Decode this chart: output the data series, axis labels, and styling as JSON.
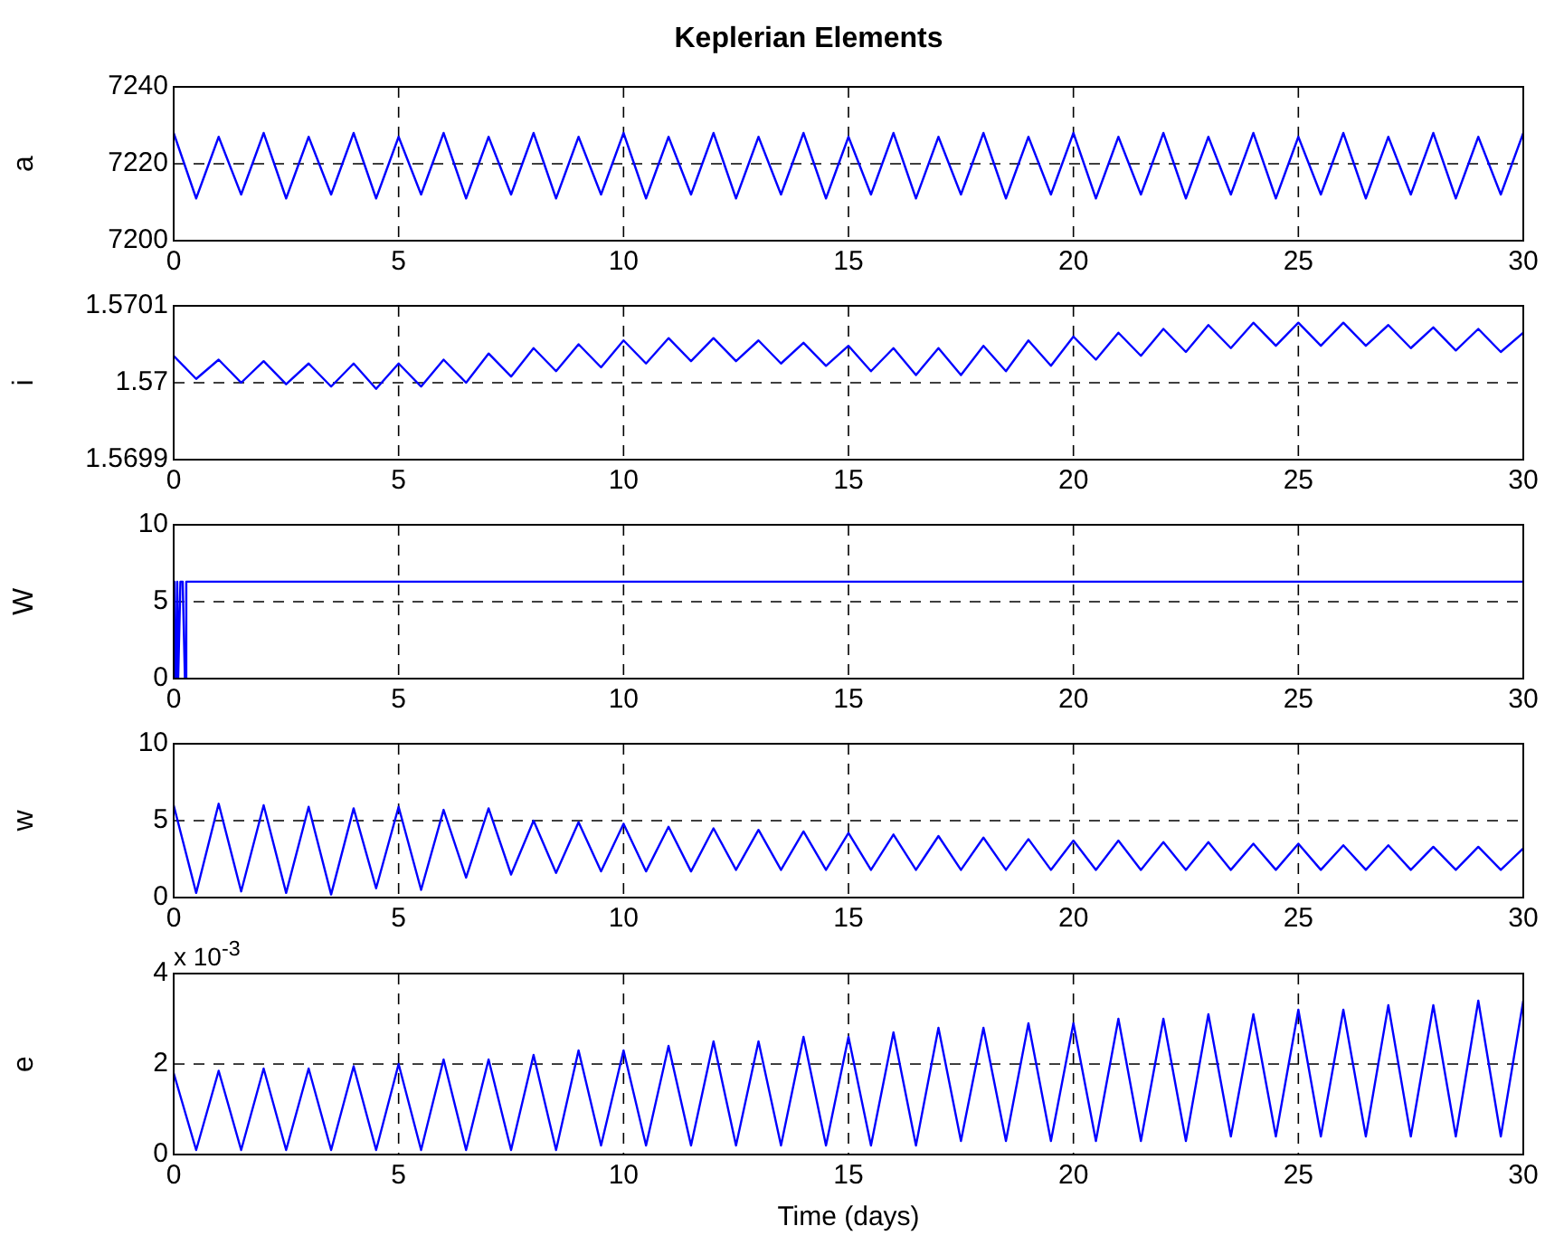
{
  "chart_data": [
    {
      "type": "line",
      "title": "Keplerian Elements",
      "ylabel": "a",
      "x": [
        0,
        0.5,
        1,
        1.5,
        2,
        2.5,
        3,
        3.5,
        4,
        4.5,
        5,
        5.5,
        6,
        6.5,
        7,
        7.5,
        8,
        8.5,
        9,
        9.5,
        10,
        10.5,
        11,
        11.5,
        12,
        12.5,
        13,
        13.5,
        14,
        14.5,
        15,
        15.5,
        16,
        16.5,
        17,
        17.5,
        18,
        18.5,
        19,
        19.5,
        20,
        20.5,
        21,
        21.5,
        22,
        22.5,
        23,
        23.5,
        24,
        24.5,
        25,
        25.5,
        26,
        26.5,
        27,
        27.5,
        28,
        28.5,
        29,
        29.5,
        30
      ],
      "series": [
        {
          "color": "#0000ff",
          "values": [
            7228,
            7211,
            7227,
            7212,
            7228,
            7211,
            7227,
            7212,
            7228,
            7211,
            7227,
            7212,
            7228,
            7211,
            7227,
            7212,
            7228,
            7211,
            7227,
            7212,
            7228,
            7211,
            7227,
            7212,
            7228,
            7211,
            7227,
            7212,
            7228,
            7211,
            7227,
            7212,
            7228,
            7211,
            7227,
            7212,
            7228,
            7211,
            7227,
            7212,
            7228,
            7211,
            7227,
            7212,
            7228,
            7211,
            7227,
            7212,
            7228,
            7211,
            7227,
            7212,
            7228,
            7211,
            7227,
            7212,
            7228,
            7211,
            7227,
            7212,
            7228
          ]
        }
      ],
      "xlim": [
        0,
        30
      ],
      "xticks": [
        0,
        5,
        10,
        15,
        20,
        25,
        30
      ],
      "ylim": [
        7200,
        7240
      ],
      "yticks": [
        7200,
        7220,
        7240
      ],
      "grid": true,
      "line_style": "solid",
      "marker": "none"
    },
    {
      "type": "line",
      "ylabel": "i",
      "x": [
        0,
        0.5,
        1,
        1.5,
        2,
        2.5,
        3,
        3.5,
        4,
        4.5,
        5,
        5.5,
        6,
        6.5,
        7,
        7.5,
        8,
        8.5,
        9,
        9.5,
        10,
        10.5,
        11,
        11.5,
        12,
        12.5,
        13,
        13.5,
        14,
        14.5,
        15,
        15.5,
        16,
        16.5,
        17,
        17.5,
        18,
        18.5,
        19,
        19.5,
        20,
        20.5,
        21,
        21.5,
        22,
        22.5,
        23,
        23.5,
        24,
        24.5,
        25,
        25.5,
        26,
        26.5,
        27,
        27.5,
        28,
        28.5,
        29,
        29.5,
        30
      ],
      "series": [
        {
          "color": "#0000ff",
          "values": [
            1.570035,
            1.570005,
            1.57003,
            1.57,
            1.570028,
            1.569998,
            1.570025,
            1.569995,
            1.570025,
            1.569992,
            1.570025,
            1.569995,
            1.57003,
            1.57,
            1.570038,
            1.570008,
            1.570045,
            1.570015,
            1.57005,
            1.57002,
            1.570055,
            1.570025,
            1.570058,
            1.570028,
            1.570058,
            1.570028,
            1.570055,
            1.570025,
            1.570052,
            1.570022,
            1.570048,
            1.570015,
            1.570045,
            1.57001,
            1.570045,
            1.57001,
            1.570048,
            1.570015,
            1.570055,
            1.570022,
            1.57006,
            1.57003,
            1.570065,
            1.570035,
            1.57007,
            1.57004,
            1.570075,
            1.570045,
            1.570078,
            1.570048,
            1.570078,
            1.570048,
            1.570078,
            1.570048,
            1.570075,
            1.570045,
            1.570072,
            1.570042,
            1.57007,
            1.57004,
            1.570065
          ]
        }
      ],
      "xlim": [
        0,
        30
      ],
      "xticks": [
        0,
        5,
        10,
        15,
        20,
        25,
        30
      ],
      "ylim": [
        1.5699,
        1.5701
      ],
      "yticks": [
        1.5699,
        1.57,
        1.5701
      ],
      "grid": true,
      "line_style": "solid",
      "marker": "none"
    },
    {
      "type": "line",
      "ylabel": "W",
      "x": [
        0,
        0.02,
        0.05,
        0.08,
        0.1,
        0.15,
        0.2,
        0.25,
        0.28,
        30
      ],
      "series": [
        {
          "color": "#0000ff",
          "values": [
            0,
            6.3,
            0,
            6.3,
            0,
            6.3,
            6.3,
            0,
            6.3,
            6.3
          ]
        }
      ],
      "xlim": [
        0,
        30
      ],
      "xticks": [
        0,
        5,
        10,
        15,
        20,
        25,
        30
      ],
      "ylim": [
        0,
        10
      ],
      "yticks": [
        0,
        5,
        10
      ],
      "grid": true,
      "line_style": "solid",
      "marker": "none"
    },
    {
      "type": "line",
      "ylabel": "w",
      "x": [
        0,
        0.5,
        1,
        1.5,
        2,
        2.5,
        3,
        3.5,
        4,
        4.5,
        5,
        5.5,
        6,
        6.5,
        7,
        7.5,
        8,
        8.5,
        9,
        9.5,
        10,
        10.5,
        11,
        11.5,
        12,
        12.5,
        13,
        13.5,
        14,
        14.5,
        15,
        15.5,
        16,
        16.5,
        17,
        17.5,
        18,
        18.5,
        19,
        19.5,
        20,
        20.5,
        21,
        21.5,
        22,
        22.5,
        23,
        23.5,
        24,
        24.5,
        25,
        25.5,
        26,
        26.5,
        27,
        27.5,
        28,
        28.5,
        29,
        29.5,
        30
      ],
      "series": [
        {
          "color": "#0000ff",
          "values": [
            6,
            0.3,
            6.1,
            0.4,
            6,
            0.3,
            5.9,
            0.2,
            5.8,
            0.6,
            5.9,
            0.5,
            5.7,
            1.3,
            5.8,
            1.5,
            5,
            1.6,
            4.9,
            1.7,
            4.8,
            1.7,
            4.6,
            1.7,
            4.5,
            1.8,
            4.4,
            1.8,
            4.3,
            1.8,
            4.2,
            1.8,
            4.1,
            1.8,
            4,
            1.8,
            3.9,
            1.8,
            3.8,
            1.8,
            3.7,
            1.8,
            3.7,
            1.8,
            3.6,
            1.8,
            3.6,
            1.8,
            3.5,
            1.8,
            3.5,
            1.8,
            3.4,
            1.8,
            3.4,
            1.8,
            3.3,
            1.8,
            3.3,
            1.8,
            3.2
          ]
        }
      ],
      "xlim": [
        0,
        30
      ],
      "xticks": [
        0,
        5,
        10,
        15,
        20,
        25,
        30
      ],
      "ylim": [
        0,
        10
      ],
      "yticks": [
        0,
        5,
        10
      ],
      "grid": true,
      "line_style": "solid",
      "marker": "none"
    },
    {
      "type": "line",
      "ylabel": "e",
      "xlabel": "Time (days)",
      "annotations": [
        "x 10$^{-3}$"
      ],
      "x": [
        0,
        0.5,
        1,
        1.5,
        2,
        2.5,
        3,
        3.5,
        4,
        4.5,
        5,
        5.5,
        6,
        6.5,
        7,
        7.5,
        8,
        8.5,
        9,
        9.5,
        10,
        10.5,
        11,
        11.5,
        12,
        12.5,
        13,
        13.5,
        14,
        14.5,
        15,
        15.5,
        16,
        16.5,
        17,
        17.5,
        18,
        18.5,
        19,
        19.5,
        20,
        20.5,
        21,
        21.5,
        22,
        22.5,
        23,
        23.5,
        24,
        24.5,
        25,
        25.5,
        26,
        26.5,
        27,
        27.5,
        28,
        28.5,
        29,
        29.5,
        30
      ],
      "series": [
        {
          "color": "#0000ff",
          "values": [
            1.8,
            0.1,
            1.85,
            0.1,
            1.9,
            0.1,
            1.9,
            0.1,
            1.95,
            0.1,
            2,
            0.1,
            2.1,
            0.1,
            2.1,
            0.1,
            2.2,
            0.1,
            2.3,
            0.2,
            2.3,
            0.2,
            2.4,
            0.2,
            2.5,
            0.2,
            2.5,
            0.2,
            2.6,
            0.2,
            2.6,
            0.2,
            2.7,
            0.2,
            2.8,
            0.3,
            2.8,
            0.3,
            2.9,
            0.3,
            2.9,
            0.3,
            3,
            0.3,
            3,
            0.3,
            3.1,
            0.4,
            3.1,
            0.4,
            3.2,
            0.4,
            3.2,
            0.4,
            3.3,
            0.4,
            3.3,
            0.4,
            3.4,
            0.4,
            3.4
          ]
        }
      ],
      "xlim": [
        0,
        30
      ],
      "xticks": [
        0,
        5,
        10,
        15,
        20,
        25,
        30
      ],
      "ylim": [
        0,
        4
      ],
      "yticks": [
        0,
        2,
        4
      ],
      "grid": true,
      "line_style": "solid",
      "marker": "none"
    }
  ]
}
